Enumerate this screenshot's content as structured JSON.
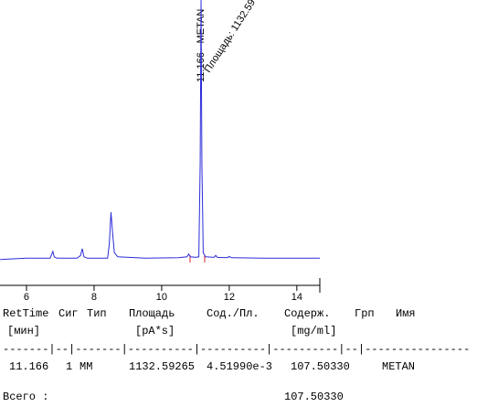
{
  "chart_data": {
    "type": "line",
    "series": [
      {
        "color": "#2b2bd9",
        "x": [
          5.22,
          6.0,
          6.7,
          6.78,
          6.82,
          6.9,
          7.5,
          7.6,
          7.65,
          7.7,
          7.8,
          8.4,
          8.45,
          8.5,
          8.55,
          8.6,
          8.7,
          9.5,
          10.5,
          10.75,
          10.8,
          10.85,
          11.0,
          11.1,
          11.14,
          11.166,
          11.19,
          11.23,
          11.3,
          11.55,
          11.6,
          11.65,
          11.95,
          12.0,
          12.05,
          13.0,
          14.68
        ],
        "values": [
          4.5,
          5,
          5,
          7.5,
          5.5,
          5,
          5,
          6,
          8.5,
          5.5,
          5,
          5,
          10,
          21.9,
          14,
          7,
          5.5,
          5,
          5.2,
          5.5,
          6.5,
          5.5,
          5.3,
          5.5,
          40,
          100,
          40,
          7,
          5.5,
          5.3,
          6,
          5.3,
          5.2,
          5.7,
          5.2,
          5,
          5
        ]
      }
    ],
    "xlim": [
      5.216,
      14.68
    ],
    "ylim": [
      -5,
      100
    ],
    "xticks": [
      6,
      8,
      10,
      12,
      14
    ],
    "grid": false,
    "annotations": [
      "11.166 - METAN",
      "Площадь: 1132.59"
    ]
  },
  "report": {
    "columns": [
      {
        "header": "RetTime",
        "unit": "[мин]",
        "cell": "11.166"
      },
      {
        "header": "Сиг",
        "cell": "1"
      },
      {
        "header": "Тип",
        "cell": "MM"
      },
      {
        "header": "Площадь",
        "unit": "[pA*s]",
        "cell": "1132.59265"
      },
      {
        "header": "Сод./Пл.",
        "cell": "4.51990e-3"
      },
      {
        "header": "Содерж.",
        "unit": "[mg/ml]",
        "cell": "107.50330"
      },
      {
        "header": "Грп"
      },
      {
        "header": "Имя",
        "cell": "METAN"
      }
    ],
    "separator": "-------|--|-------|----------|----------|----------|--|----------------",
    "total_label": "Всего :",
    "total_value": "107.50330"
  }
}
